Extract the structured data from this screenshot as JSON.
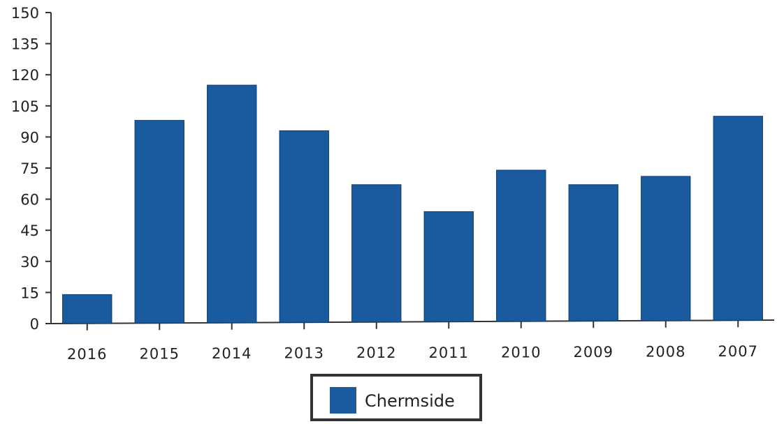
{
  "colors": {
    "bar": "#1a5a9e",
    "axis": "#333333",
    "legend_border": "#333333"
  },
  "chart_data": {
    "type": "bar",
    "title": "",
    "xlabel": "",
    "ylabel": "",
    "categories": [
      "2016",
      "2015",
      "2014",
      "2013",
      "2012",
      "2011",
      "2010",
      "2009",
      "2008",
      "2007"
    ],
    "series": [
      {
        "name": "Chermside",
        "values": [
          14,
          98,
          115,
          93,
          67,
          54,
          74,
          67,
          71,
          100
        ]
      }
    ],
    "ylim": [
      0,
      150
    ],
    "yticks": [
      0,
      15,
      30,
      45,
      60,
      75,
      90,
      105,
      120,
      135,
      150
    ],
    "grid": false,
    "legend_position": "bottom-center"
  }
}
